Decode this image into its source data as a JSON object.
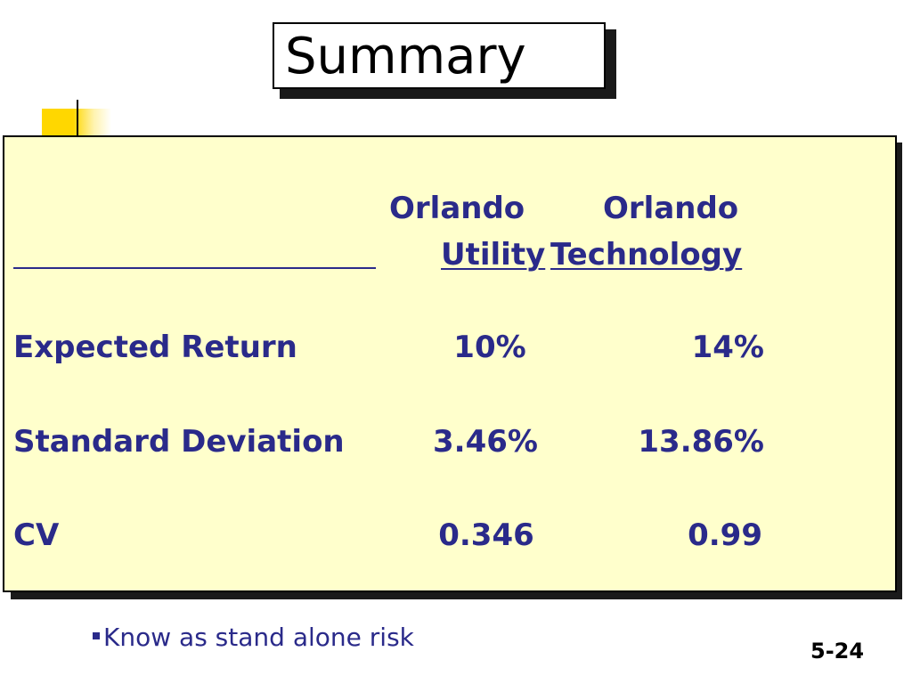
{
  "slide": {
    "title": "Summary",
    "table": {
      "header_top": [
        "Orlando",
        "Orlando"
      ],
      "header_bottom": [
        "Utility",
        "Technology"
      ],
      "rows": [
        {
          "label": "Expected Return",
          "utility": "10%",
          "technology": "14%"
        },
        {
          "label": "Standard Deviation",
          "utility": "3.46%",
          "technology": "13.86%"
        },
        {
          "label": "CV",
          "utility": "0.346",
          "technology": "0.99"
        }
      ]
    },
    "bullet": "Know as stand alone risk",
    "slide_number": "5-24"
  },
  "colors": {
    "panel_bg": "#ffffcc",
    "text": "#2a2a8a",
    "accent": "#ffd700"
  }
}
